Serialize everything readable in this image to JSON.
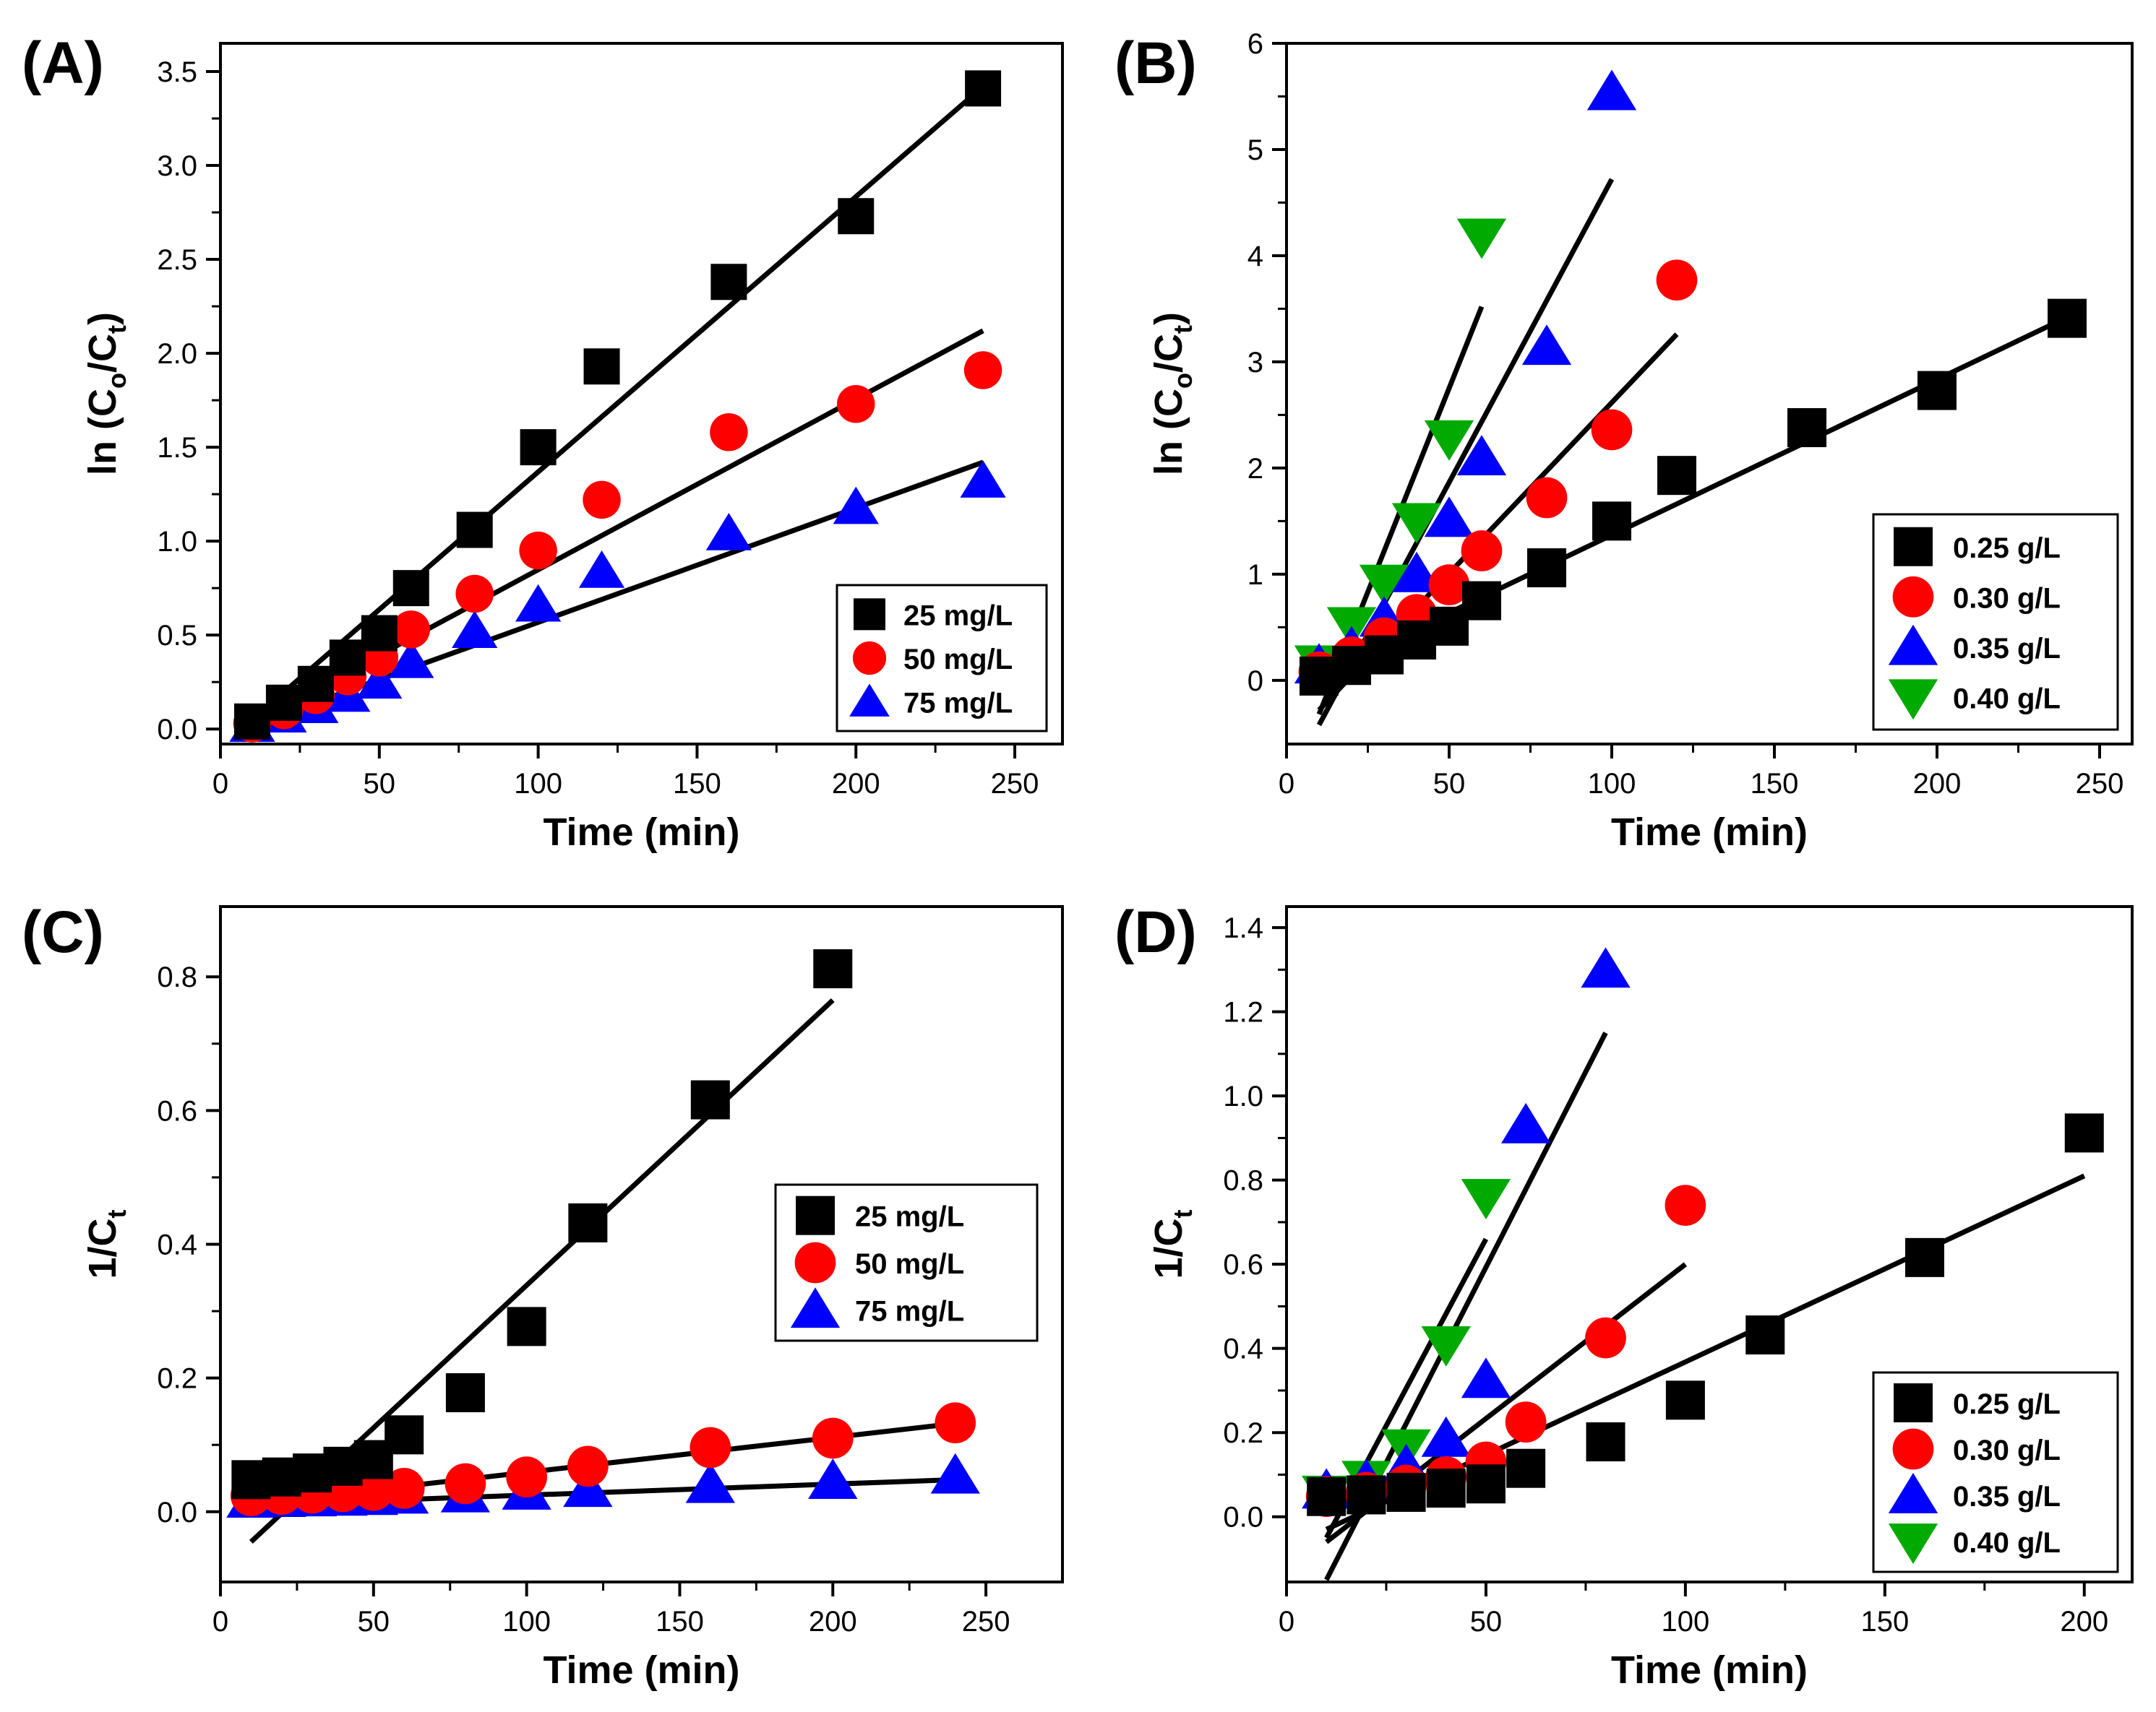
{
  "chart_data": [
    {
      "panel": "(A)",
      "type": "scatter",
      "xlabel": "Time (min)",
      "ylabel_main": "ln (C",
      "ylabel_sub1": "o",
      "ylabel_mid": "/C",
      "ylabel_sub2": "t",
      "ylabel_end": ")",
      "xlim": [
        0,
        265
      ],
      "ylim": [
        -0.08,
        3.65
      ],
      "xticks": [
        0,
        50,
        100,
        150,
        200,
        250
      ],
      "xtick_labels": [
        "0",
        "50",
        "100",
        "150",
        "200",
        "250"
      ],
      "yticks": [
        0,
        0.5,
        1.0,
        1.5,
        2.0,
        2.5,
        3.0,
        3.5
      ],
      "ytick_labels": [
        "0.0",
        "0.5",
        "1.0",
        "1.5",
        "2.0",
        "2.5",
        "3.0",
        "3.5"
      ],
      "legend_position": "bottom-right",
      "legend_size": "small",
      "series": [
        {
          "name": "25 mg/L",
          "marker": "square",
          "color": "#000000",
          "x": [
            10,
            20,
            30,
            40,
            50,
            60,
            80,
            100,
            120,
            160,
            200,
            240
          ],
          "y": [
            0.04,
            0.14,
            0.24,
            0.38,
            0.51,
            0.75,
            1.06,
            1.5,
            1.93,
            2.38,
            2.73,
            3.41
          ],
          "fit": [
            [
              10,
              0.05
            ],
            [
              240,
              3.42
            ]
          ]
        },
        {
          "name": "50 mg/L",
          "marker": "circle",
          "color": "#ff0000",
          "x": [
            10,
            20,
            30,
            40,
            50,
            60,
            80,
            100,
            120,
            160,
            200,
            240
          ],
          "y": [
            0.03,
            0.1,
            0.18,
            0.28,
            0.38,
            0.53,
            0.72,
            0.95,
            1.22,
            1.58,
            1.73,
            1.91
          ],
          "fit": [
            [
              10,
              0.03
            ],
            [
              240,
              2.12
            ]
          ]
        },
        {
          "name": "75 mg/L",
          "marker": "triangle-up",
          "color": "#0000ff",
          "x": [
            10,
            20,
            30,
            40,
            50,
            60,
            80,
            100,
            120,
            160,
            200,
            240
          ],
          "y": [
            0.02,
            0.07,
            0.12,
            0.18,
            0.25,
            0.36,
            0.52,
            0.66,
            0.84,
            1.04,
            1.18,
            1.32
          ],
          "fit": [
            [
              10,
              0.02
            ],
            [
              240,
              1.42
            ]
          ]
        }
      ]
    },
    {
      "panel": "(B)",
      "type": "scatter",
      "xlabel": "Time (min)",
      "ylabel_main": "ln (C",
      "ylabel_sub1": "o",
      "ylabel_mid": "/C",
      "ylabel_sub2": "t",
      "ylabel_end": ")",
      "xlim": [
        0,
        260
      ],
      "ylim": [
        -0.6,
        6.0
      ],
      "xticks": [
        0,
        50,
        100,
        150,
        200,
        250
      ],
      "xtick_labels": [
        "0",
        "50",
        "100",
        "150",
        "200",
        "250"
      ],
      "yticks": [
        0,
        1,
        2,
        3,
        4,
        5,
        6
      ],
      "ytick_labels": [
        "0",
        "1",
        "2",
        "3",
        "4",
        "5",
        "6"
      ],
      "legend_position": "bottom-right",
      "legend_size": "large",
      "series": [
        {
          "name": "0.25 g/L",
          "marker": "square",
          "color": "#000000",
          "x": [
            10,
            20,
            30,
            40,
            50,
            60,
            80,
            100,
            120,
            160,
            200,
            240
          ],
          "y": [
            0.04,
            0.14,
            0.24,
            0.38,
            0.51,
            0.75,
            1.06,
            1.5,
            1.93,
            2.38,
            2.73,
            3.41
          ],
          "fit": [
            [
              10,
              0.05
            ],
            [
              240,
              3.42
            ]
          ]
        },
        {
          "name": "0.30 g/L",
          "marker": "circle",
          "color": "#ff0000",
          "x": [
            10,
            20,
            30,
            40,
            50,
            60,
            80,
            100,
            120
          ],
          "y": [
            0.08,
            0.22,
            0.4,
            0.62,
            0.9,
            1.22,
            1.72,
            2.36,
            3.77
          ],
          "fit": [
            [
              10,
              -0.28
            ],
            [
              120,
              3.26
            ]
          ]
        },
        {
          "name": "0.35 g/L",
          "marker": "triangle-up",
          "color": "#0000ff",
          "x": [
            10,
            20,
            30,
            40,
            50,
            60,
            80,
            100
          ],
          "y": [
            0.14,
            0.3,
            0.58,
            1.0,
            1.52,
            2.1,
            3.14,
            5.54
          ],
          "fit": [
            [
              10,
              -0.42
            ],
            [
              100,
              4.72
            ]
          ]
        },
        {
          "name": "0.40 g/L",
          "marker": "triangle-down",
          "color": "#00aa00",
          "x": [
            10,
            20,
            30,
            40,
            50,
            60
          ],
          "y": [
            0.16,
            0.52,
            0.92,
            1.5,
            2.28,
            4.18
          ],
          "fit": [
            [
              10,
              -0.32
            ],
            [
              60,
              3.52
            ]
          ]
        }
      ]
    },
    {
      "panel": "(C)",
      "type": "scatter",
      "xlabel": "Time (min)",
      "ylabel_main": "1/C",
      "ylabel_sub1": "t",
      "ylabel_mid": "",
      "ylabel_sub2": "",
      "ylabel_end": "",
      "xlim": [
        0,
        275
      ],
      "ylim": [
        -0.105,
        0.905
      ],
      "xticks": [
        0,
        50,
        100,
        150,
        200,
        250
      ],
      "xtick_labels": [
        "0",
        "50",
        "100",
        "150",
        "200",
        "250"
      ],
      "yticks": [
        0,
        0.2,
        0.4,
        0.6,
        0.8
      ],
      "ytick_labels": [
        "0.0",
        "0.2",
        "0.4",
        "0.6",
        "0.8"
      ],
      "legend_position": "center-right",
      "legend_size": "large",
      "series": [
        {
          "name": "25 mg/L",
          "marker": "square",
          "color": "#000000",
          "x": [
            10,
            20,
            30,
            40,
            50,
            60,
            80,
            100,
            120,
            160,
            200
          ],
          "y": [
            0.048,
            0.052,
            0.058,
            0.068,
            0.078,
            0.115,
            0.178,
            0.277,
            0.432,
            0.616,
            0.812
          ],
          "fit": [
            [
              10,
              -0.045
            ],
            [
              200,
              0.765
            ]
          ]
        },
        {
          "name": "50 mg/L",
          "marker": "circle",
          "color": "#ff0000",
          "x": [
            10,
            20,
            30,
            40,
            50,
            60,
            80,
            100,
            120,
            160,
            200,
            240
          ],
          "y": [
            0.024,
            0.026,
            0.028,
            0.03,
            0.032,
            0.035,
            0.042,
            0.052,
            0.068,
            0.096,
            0.11,
            0.133
          ],
          "fit": [
            [
              10,
              0.012
            ],
            [
              240,
              0.132
            ]
          ]
        },
        {
          "name": "75 mg/L",
          "marker": "triangle-up",
          "color": "#0000ff",
          "x": [
            10,
            20,
            30,
            40,
            50,
            60,
            80,
            100,
            120,
            160,
            200,
            240
          ],
          "y": [
            0.018,
            0.019,
            0.02,
            0.021,
            0.022,
            0.024,
            0.026,
            0.03,
            0.034,
            0.04,
            0.046,
            0.054
          ],
          "fit": [
            [
              10,
              0.01
            ],
            [
              240,
              0.048
            ]
          ]
        }
      ]
    },
    {
      "panel": "(D)",
      "type": "scatter",
      "xlabel": "Time (min)",
      "ylabel_main": "1/C",
      "ylabel_sub1": "t",
      "ylabel_mid": "",
      "ylabel_sub2": "",
      "ylabel_end": "",
      "xlim": [
        0,
        212
      ],
      "ylim": [
        -0.155,
        1.45
      ],
      "xticks": [
        0,
        50,
        100,
        150,
        200
      ],
      "xtick_labels": [
        "0",
        "50",
        "100",
        "150",
        "200"
      ],
      "yticks": [
        0,
        0.2,
        0.4,
        0.6,
        0.8,
        1.0,
        1.2,
        1.4
      ],
      "ytick_labels": [
        "0.0",
        "0.2",
        "0.4",
        "0.6",
        "0.8",
        "1.0",
        "1.2",
        "1.4"
      ],
      "legend_position": "bottom-right",
      "legend_size": "large",
      "series": [
        {
          "name": "0.25 g/L",
          "marker": "square",
          "color": "#000000",
          "x": [
            10,
            20,
            30,
            40,
            50,
            60,
            80,
            100,
            120,
            160,
            200
          ],
          "y": [
            0.048,
            0.052,
            0.058,
            0.068,
            0.078,
            0.115,
            0.178,
            0.277,
            0.432,
            0.616,
            0.912
          ],
          "fit": [
            [
              10,
              -0.03
            ],
            [
              200,
              0.81
            ]
          ]
        },
        {
          "name": "0.30 g/L",
          "marker": "circle",
          "color": "#ff0000",
          "x": [
            10,
            20,
            30,
            40,
            50,
            60,
            80,
            100
          ],
          "y": [
            0.048,
            0.058,
            0.075,
            0.095,
            0.13,
            0.225,
            0.425,
            0.74
          ],
          "fit": [
            [
              10,
              -0.06
            ],
            [
              100,
              0.6
            ]
          ]
        },
        {
          "name": "0.35 g/L",
          "marker": "triangle-up",
          "color": "#0000ff",
          "x": [
            10,
            20,
            30,
            40,
            50,
            60,
            80
          ],
          "y": [
            0.062,
            0.085,
            0.12,
            0.185,
            0.325,
            0.93,
            1.3
          ],
          "fit": [
            [
              10,
              -0.15
            ],
            [
              80,
              1.15
            ]
          ]
        },
        {
          "name": "0.40 g/L",
          "marker": "triangle-down",
          "color": "#00aa00",
          "x": [
            10,
            20,
            30,
            40,
            50
          ],
          "y": [
            0.055,
            0.09,
            0.165,
            0.41,
            0.76
          ],
          "fit": [
            [
              10,
              -0.05
            ],
            [
              50,
              0.66
            ]
          ]
        }
      ]
    }
  ]
}
